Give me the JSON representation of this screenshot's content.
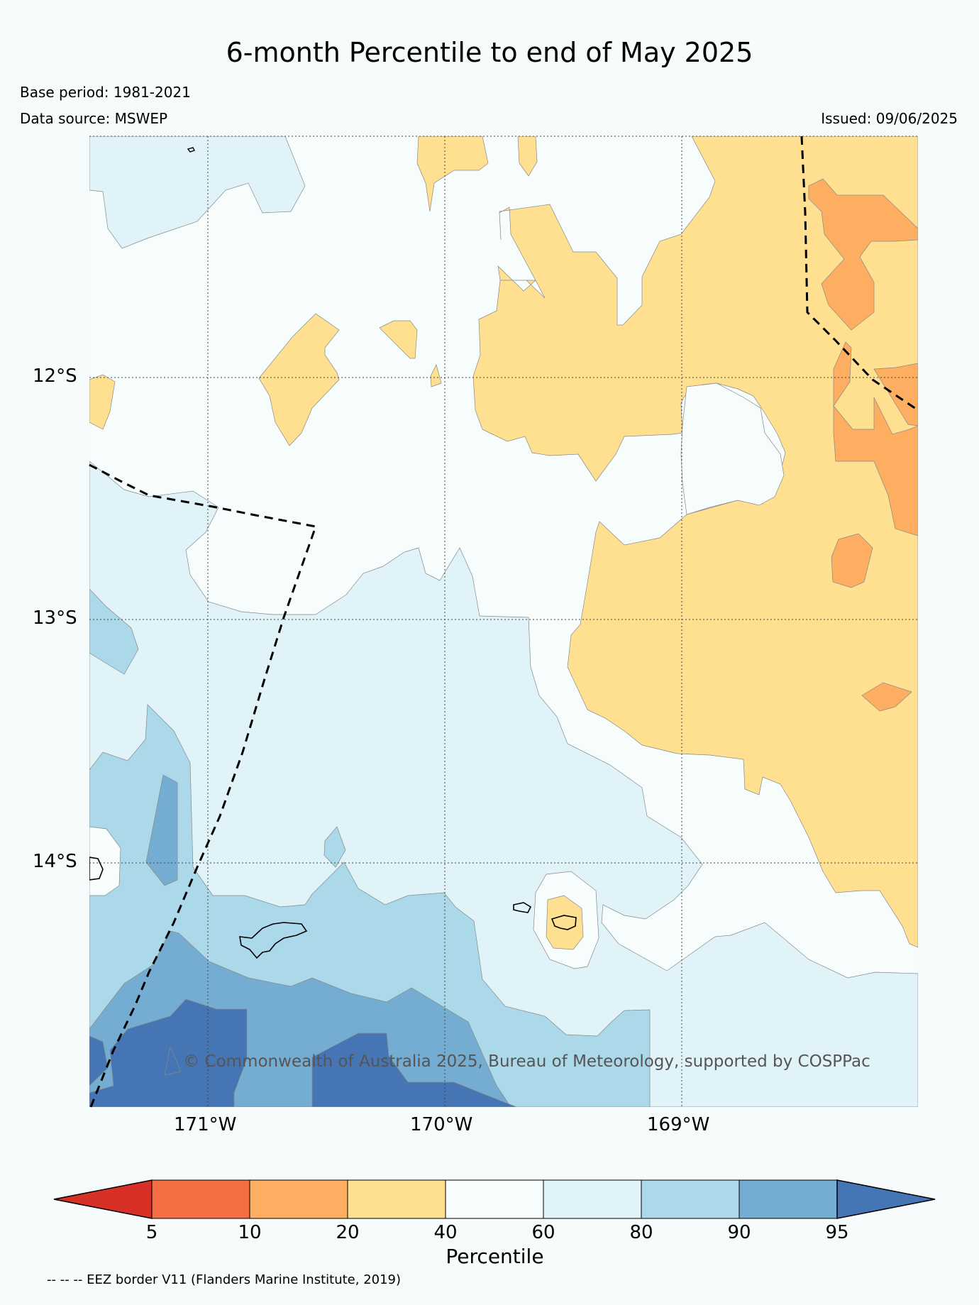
{
  "title": "6-month Percentile to end of May 2025",
  "meta": {
    "base_period": "Base period: 1981-2021",
    "data_source": "Data source: MSWEP",
    "issued": "Issued: 09/06/2025"
  },
  "axes": {
    "lon_labels": [
      "171°W",
      "170°W",
      "169°W"
    ],
    "lat_labels": [
      "12°S",
      "13°S",
      "14°S"
    ]
  },
  "copyright": "© Commonwealth of Australia 2025, Bureau of Meteorology, supported by COSPPac",
  "colorbar": {
    "label": "Percentile",
    "ticks": [
      "5",
      "10",
      "20",
      "40",
      "60",
      "80",
      "90",
      "95"
    ],
    "colors": {
      "below_5": "#d73027",
      "5-10": "#f46d43",
      "10-20": "#fdae61",
      "20-40": "#fee090",
      "40-60": "#f7fcfd",
      "60-80": "#e0f3f8",
      "80-90": "#abd9e9",
      "90-95": "#74add1",
      "above_95": "#4575b4"
    }
  },
  "footnote": "-- -- -- EEZ border V11 (Flanders Marine Institute, 2019)"
}
